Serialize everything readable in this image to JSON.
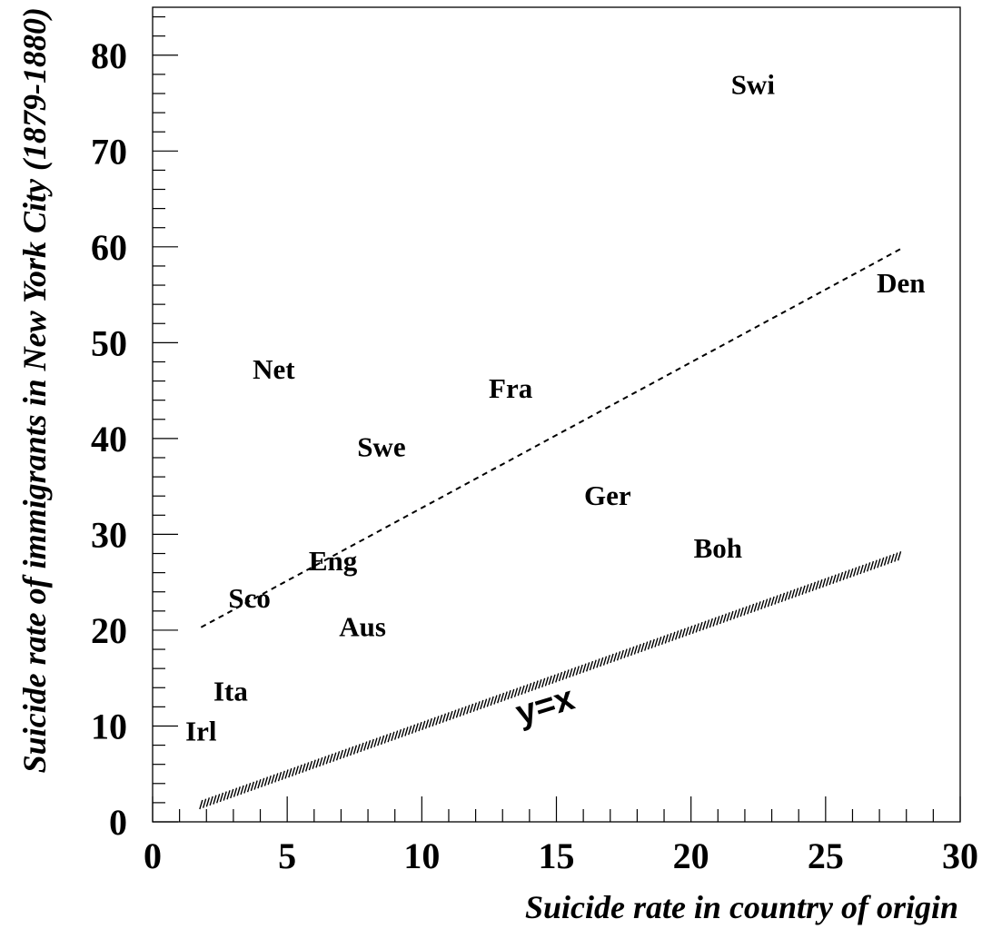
{
  "chart_data": {
    "type": "scatter",
    "title": "",
    "xlabel": "Suicide rate in country of origin",
    "ylabel": "Suicide rate of immigrants in New York City (1879-1880)",
    "xlim": [
      0,
      30
    ],
    "ylim": [
      0,
      85
    ],
    "x_ticks": [
      0,
      5,
      10,
      15,
      20,
      25,
      30
    ],
    "y_ticks": [
      0,
      10,
      20,
      30,
      40,
      50,
      60,
      70,
      80
    ],
    "grid": false,
    "points": [
      {
        "label": "Swi",
        "x": 22.3,
        "y": 77.0
      },
      {
        "label": "Den",
        "x": 27.8,
        "y": 56.3
      },
      {
        "label": "Net",
        "x": 4.5,
        "y": 47.3
      },
      {
        "label": "Fra",
        "x": 13.3,
        "y": 45.3
      },
      {
        "label": "Swe",
        "x": 8.5,
        "y": 39.2
      },
      {
        "label": "Ger",
        "x": 16.9,
        "y": 34.1
      },
      {
        "label": "Boh",
        "x": 21.0,
        "y": 28.6
      },
      {
        "label": "Eng",
        "x": 6.7,
        "y": 27.3
      },
      {
        "label": "Sco",
        "x": 3.6,
        "y": 23.4
      },
      {
        "label": "Aus",
        "x": 7.8,
        "y": 20.4
      },
      {
        "label": "Ita",
        "x": 2.9,
        "y": 13.7
      },
      {
        "label": "Irl",
        "x": 1.8,
        "y": 9.5
      }
    ],
    "lines": [
      {
        "name": "",
        "style": "dashed",
        "x": [
          1.8,
          27.8
        ],
        "y": [
          20.3,
          59.8
        ]
      },
      {
        "name": "y=x",
        "style": "hatched",
        "x": [
          1.8,
          27.8
        ],
        "y": [
          1.8,
          27.8
        ]
      }
    ],
    "annotation": {
      "text": "y=x",
      "x": 14.7,
      "y": 11.0
    }
  }
}
